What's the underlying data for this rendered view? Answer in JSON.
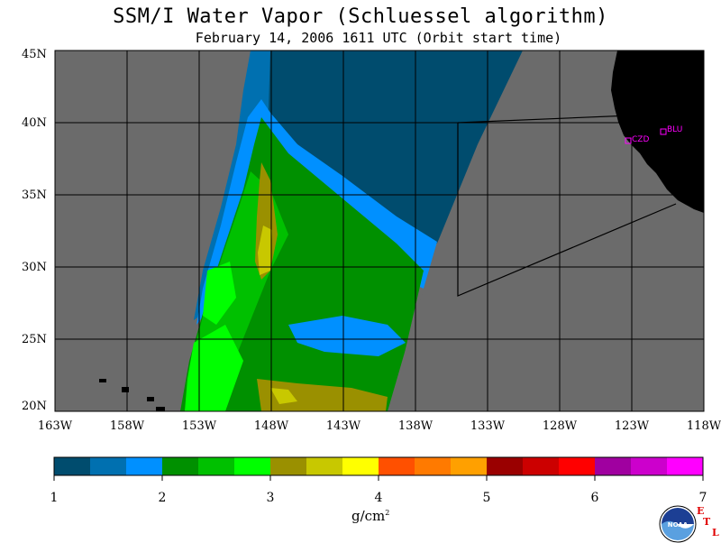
{
  "header": {
    "title": "SSM/I Water Vapor (Schluessel algorithm)",
    "subtitle": "February 14, 2006  1611 UTC  (Orbit start time)"
  },
  "map": {
    "lat_labels": [
      "45N",
      "40N",
      "35N",
      "30N",
      "25N",
      "20N"
    ],
    "lon_labels": [
      "163W",
      "158W",
      "153W",
      "148W",
      "143W",
      "138W",
      "133W",
      "128W",
      "123W",
      "118W"
    ],
    "stations": [
      {
        "label": "CZD"
      },
      {
        "label": "BLU"
      }
    ],
    "colors": {
      "no_data": "#6b6b6b",
      "land": "#000000",
      "station": "#ff00ff",
      "grid": "#000000"
    }
  },
  "colorbar": {
    "tick_labels": [
      "1",
      "2",
      "3",
      "4",
      "5",
      "6",
      "7"
    ],
    "units_base": "g/cm",
    "units_exp": "2",
    "colors": [
      "#004c6e",
      "#0070b0",
      "#0090ff",
      "#009000",
      "#00c000",
      "#00ff00",
      "#9a9000",
      "#c8c800",
      "#ffff00",
      "#ff5000",
      "#ff7a00",
      "#ffa000",
      "#9a0000",
      "#cc0000",
      "#ff0000",
      "#a000a0",
      "#cc00cc",
      "#ff00ff"
    ]
  },
  "logo": {
    "text": "NOAA",
    "etl": [
      "E",
      "T",
      "L"
    ]
  }
}
